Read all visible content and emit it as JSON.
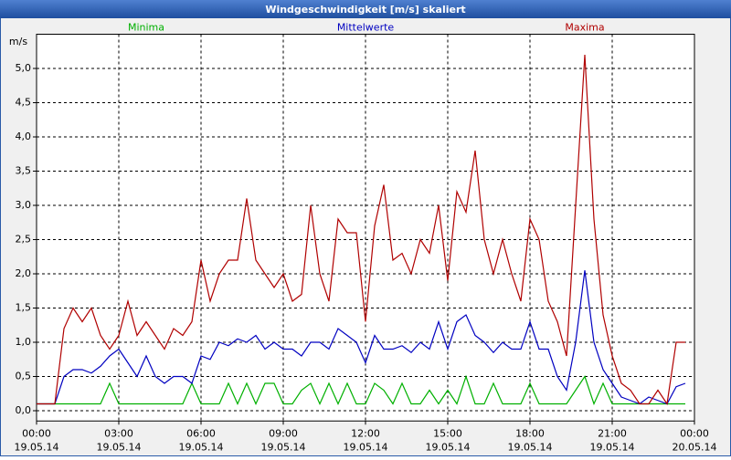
{
  "chart_data": {
    "type": "line",
    "title": "Windgeschwindigkeit [m/s] skaliert",
    "y_label": "m/s",
    "x": [
      0,
      20,
      40,
      60,
      80,
      100,
      120,
      140,
      160,
      180,
      200,
      220,
      240,
      260,
      280,
      300,
      320,
      340,
      360,
      380,
      400,
      420,
      440,
      460,
      480,
      500,
      520,
      540,
      560,
      580,
      600,
      620,
      640,
      660,
      680,
      700,
      720,
      740,
      760,
      780,
      800,
      820,
      840,
      860,
      880,
      900,
      920,
      940,
      960,
      980,
      1000,
      1020,
      1040,
      1060,
      1080,
      1100,
      1120,
      1140,
      1160,
      1180,
      1200,
      1220,
      1240,
      1260,
      1280,
      1300,
      1320,
      1340,
      1360,
      1380,
      1400,
      1420
    ],
    "xlim": [
      0,
      1440
    ],
    "xticks": [
      {
        "value": 0,
        "label": "00:00"
      },
      {
        "value": 180,
        "label": "03:00"
      },
      {
        "value": 360,
        "label": "06:00"
      },
      {
        "value": 540,
        "label": "09:00"
      },
      {
        "value": 720,
        "label": "12:00"
      },
      {
        "value": 900,
        "label": "15:00"
      },
      {
        "value": 1080,
        "label": "18:00"
      },
      {
        "value": 1260,
        "label": "21:00"
      },
      {
        "value": 1440,
        "label": "00:00"
      }
    ],
    "xtick_dates": [
      "19.05.14",
      "19.05.14",
      "19.05.14",
      "19.05.14",
      "19.05.14",
      "19.05.14",
      "19.05.14",
      "19.05.14",
      "20.05.14"
    ],
    "ylim": [
      -0.15,
      5.5
    ],
    "yticks": [
      {
        "value": 0,
        "label": "0,0"
      },
      {
        "value": 0.5,
        "label": "0,5"
      },
      {
        "value": 1,
        "label": "1,0"
      },
      {
        "value": 1.5,
        "label": "1,5"
      },
      {
        "value": 2,
        "label": "2,0"
      },
      {
        "value": 2.5,
        "label": "2,5"
      },
      {
        "value": 3,
        "label": "3,0"
      },
      {
        "value": 3.5,
        "label": "3,5"
      },
      {
        "value": 4,
        "label": "4,0"
      },
      {
        "value": 4.5,
        "label": "4,5"
      },
      {
        "value": 5,
        "label": "5,0"
      }
    ],
    "grid": true,
    "series": [
      {
        "name": "Minima",
        "color": "#00b000",
        "values": [
          0.1,
          0.1,
          0.1,
          0.1,
          0.1,
          0.1,
          0.1,
          0.1,
          0.4,
          0.1,
          0.1,
          0.1,
          0.1,
          0.1,
          0.1,
          0.1,
          0.1,
          0.4,
          0.1,
          0.1,
          0.1,
          0.4,
          0.1,
          0.4,
          0.1,
          0.4,
          0.4,
          0.1,
          0.1,
          0.3,
          0.4,
          0.1,
          0.4,
          0.1,
          0.4,
          0.1,
          0.1,
          0.4,
          0.3,
          0.1,
          0.4,
          0.1,
          0.1,
          0.3,
          0.1,
          0.3,
          0.1,
          0.5,
          0.1,
          0.1,
          0.4,
          0.1,
          0.1,
          0.1,
          0.4,
          0.1,
          0.1,
          0.1,
          0.1,
          0.3,
          0.5,
          0.1,
          0.4,
          0.1,
          0.1,
          0.1,
          0.1,
          0.1,
          0.1,
          0.1,
          0.1,
          0.1
        ]
      },
      {
        "name": "Mittelwerte",
        "color": "#0000c0",
        "values": [
          0.1,
          0.1,
          0.1,
          0.5,
          0.6,
          0.6,
          0.55,
          0.65,
          0.8,
          0.9,
          0.7,
          0.5,
          0.8,
          0.5,
          0.4,
          0.5,
          0.5,
          0.4,
          0.8,
          0.75,
          1.0,
          0.95,
          1.05,
          1.0,
          1.1,
          0.9,
          1.0,
          0.9,
          0.9,
          0.8,
          1.0,
          1.0,
          0.9,
          1.2,
          1.1,
          1.0,
          0.7,
          1.1,
          0.9,
          0.9,
          0.95,
          0.85,
          1.0,
          0.9,
          1.3,
          0.9,
          1.3,
          1.4,
          1.1,
          1.0,
          0.85,
          1.0,
          0.9,
          0.9,
          1.3,
          0.9,
          0.9,
          0.5,
          0.3,
          1.0,
          2.05,
          1.0,
          0.6,
          0.4,
          0.2,
          0.15,
          0.1,
          0.2,
          0.15,
          0.1,
          0.35,
          0.4
        ]
      },
      {
        "name": "Maxima",
        "color": "#b00000",
        "values": [
          0.1,
          0.1,
          0.1,
          1.2,
          1.5,
          1.3,
          1.5,
          1.1,
          0.9,
          1.1,
          1.6,
          1.1,
          1.3,
          1.1,
          0.9,
          1.2,
          1.1,
          1.3,
          2.2,
          1.6,
          2.0,
          2.2,
          2.2,
          3.1,
          2.2,
          2.0,
          1.8,
          2.0,
          1.6,
          1.7,
          3.0,
          2.0,
          1.6,
          2.8,
          2.6,
          2.6,
          1.3,
          2.7,
          3.3,
          2.2,
          2.3,
          2.0,
          2.5,
          2.3,
          3.0,
          1.9,
          3.2,
          2.9,
          3.8,
          2.5,
          2.0,
          2.5,
          2.0,
          1.6,
          2.8,
          2.5,
          1.6,
          1.3,
          0.8,
          3.0,
          5.2,
          2.8,
          1.4,
          0.8,
          0.4,
          0.3,
          0.1,
          0.1,
          0.3,
          0.1,
          1.0,
          1.0
        ]
      }
    ]
  }
}
